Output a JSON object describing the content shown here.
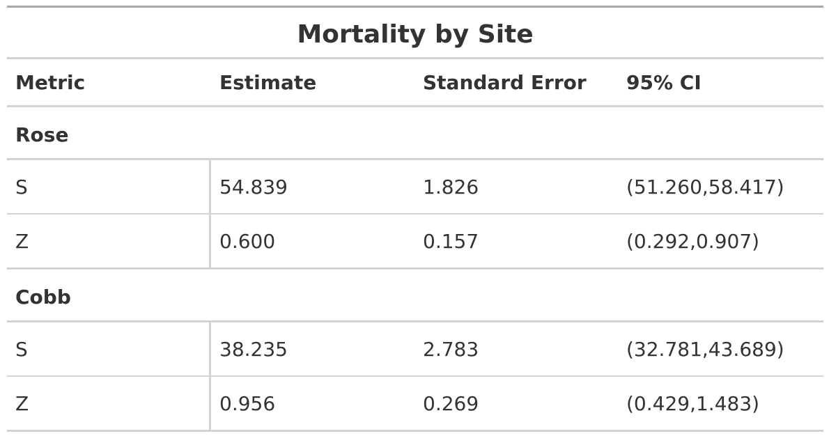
{
  "table": {
    "title": "Mortality by Site",
    "columns": [
      "Metric",
      "Estimate",
      "Standard Error",
      "95% CI"
    ],
    "groups": [
      {
        "name": "Rose",
        "rows": [
          {
            "metric": "S",
            "estimate": "54.839",
            "se": "1.826",
            "ci": "(51.260,58.417)"
          },
          {
            "metric": "Z",
            "estimate": "0.600",
            "se": "0.157",
            "ci": "(0.292,0.907)"
          }
        ]
      },
      {
        "name": "Cobb",
        "rows": [
          {
            "metric": "S",
            "estimate": "38.235",
            "se": "2.783",
            "ci": "(32.781,43.689)"
          },
          {
            "metric": "Z",
            "estimate": "0.956",
            "se": "0.269",
            "ci": "(0.429,1.483)"
          }
        ]
      }
    ]
  }
}
